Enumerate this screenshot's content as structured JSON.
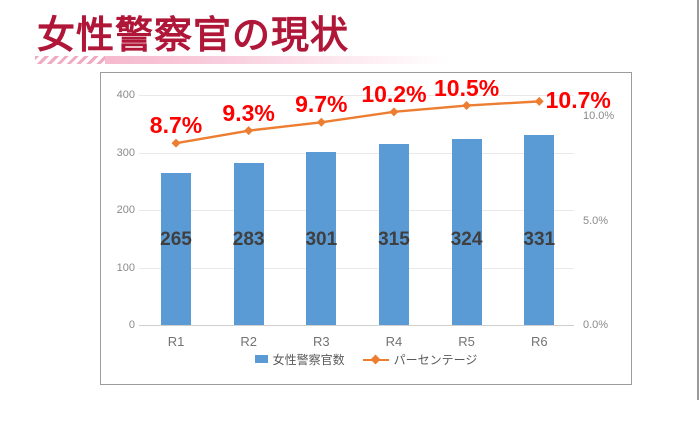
{
  "slide": {
    "title": "女性警察官の現状",
    "colors": {
      "title": "#b01638",
      "accent_pink": "#f6b9ce",
      "bar": "#5b9bd5",
      "line": "#ed7d31",
      "percent_label": "#ff0000",
      "bar_value_label": "#3f3f3f",
      "axis_text": "#8a8a8a",
      "chart_border": "#9c9c9c"
    }
  },
  "chart_data": {
    "type": "combo-bar-line",
    "title": "",
    "categories": [
      "R1",
      "R2",
      "R3",
      "R4",
      "R5",
      "R6"
    ],
    "series": [
      {
        "name": "女性警察官数",
        "type": "bar",
        "color": "#5b9bd5",
        "values": [
          265,
          283,
          301,
          315,
          324,
          331
        ],
        "value_labels": [
          "265",
          "283",
          "301",
          "315",
          "324",
          "331"
        ]
      },
      {
        "name": "パーセンテージ",
        "type": "line",
        "color": "#ed7d31",
        "marker": "diamond",
        "values": [
          8.7,
          9.3,
          9.7,
          10.2,
          10.5,
          10.7
        ],
        "point_labels": [
          "8.7%",
          "9.3%",
          "9.7%",
          "10.2%",
          "10.5%",
          "10.7%"
        ]
      }
    ],
    "left_axis": {
      "min": 0,
      "max": 400,
      "ticks": [
        0,
        100,
        200,
        300,
        400
      ]
    },
    "right_axis": {
      "min": 0,
      "ticks": [
        "0.0%",
        "5.0%",
        "10.0%"
      ],
      "tick_values": [
        0,
        5,
        10
      ]
    },
    "legend_position": "bottom",
    "grid": true
  }
}
